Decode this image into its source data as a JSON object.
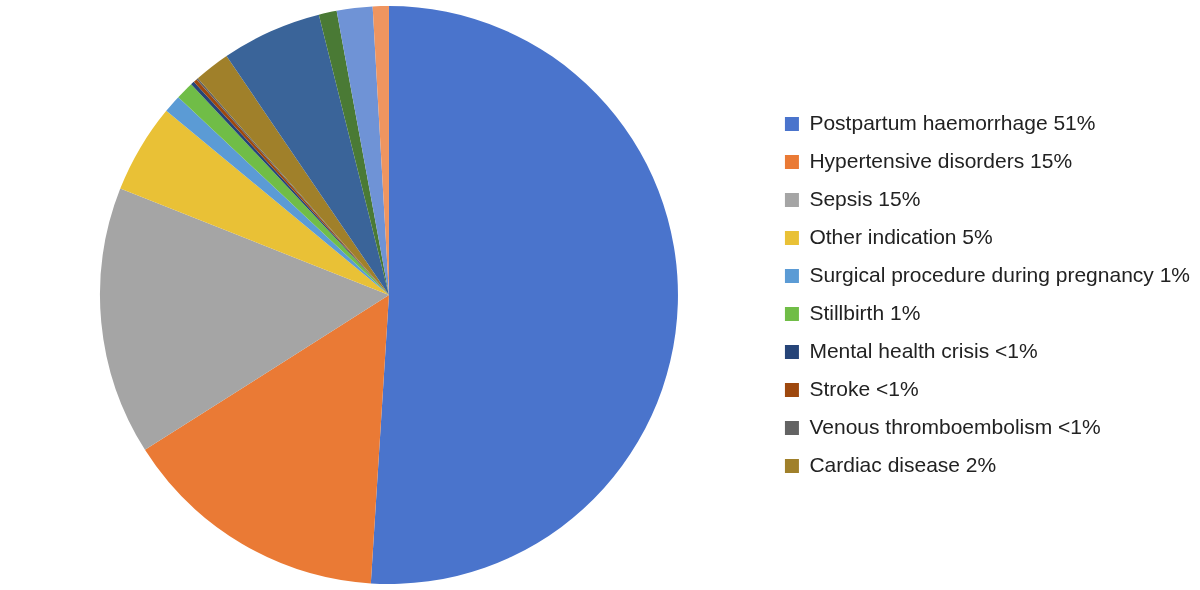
{
  "chart_data": {
    "type": "pie",
    "legend": "right",
    "categories": [
      "Postpartum haemorrhage 51%",
      "Hypertensive disorders 15%",
      "Sepsis 15%",
      "Other indication 5%",
      "Surgical procedure during pregnancy 1%",
      "Stillbirth 1%",
      "Mental health crisis <1%",
      "Stroke <1%",
      "Venous thromboembolism <1%",
      "Cardiac disease 2%",
      null,
      null,
      null,
      null
    ],
    "values": [
      51,
      15,
      15,
      5,
      1,
      1,
      0.2,
      0.2,
      0.1,
      2,
      5.6,
      1,
      2,
      0.9
    ],
    "colors": [
      "#4a74cc",
      "#ea7a35",
      "#a5a5a5",
      "#e9c136",
      "#5b9bd5",
      "#70bd47",
      "#264478",
      "#9e480e",
      "#636363",
      "#a0802a",
      "#3a6499",
      "#4a7a35",
      "#6f93d6",
      "#ef9560"
    ]
  }
}
